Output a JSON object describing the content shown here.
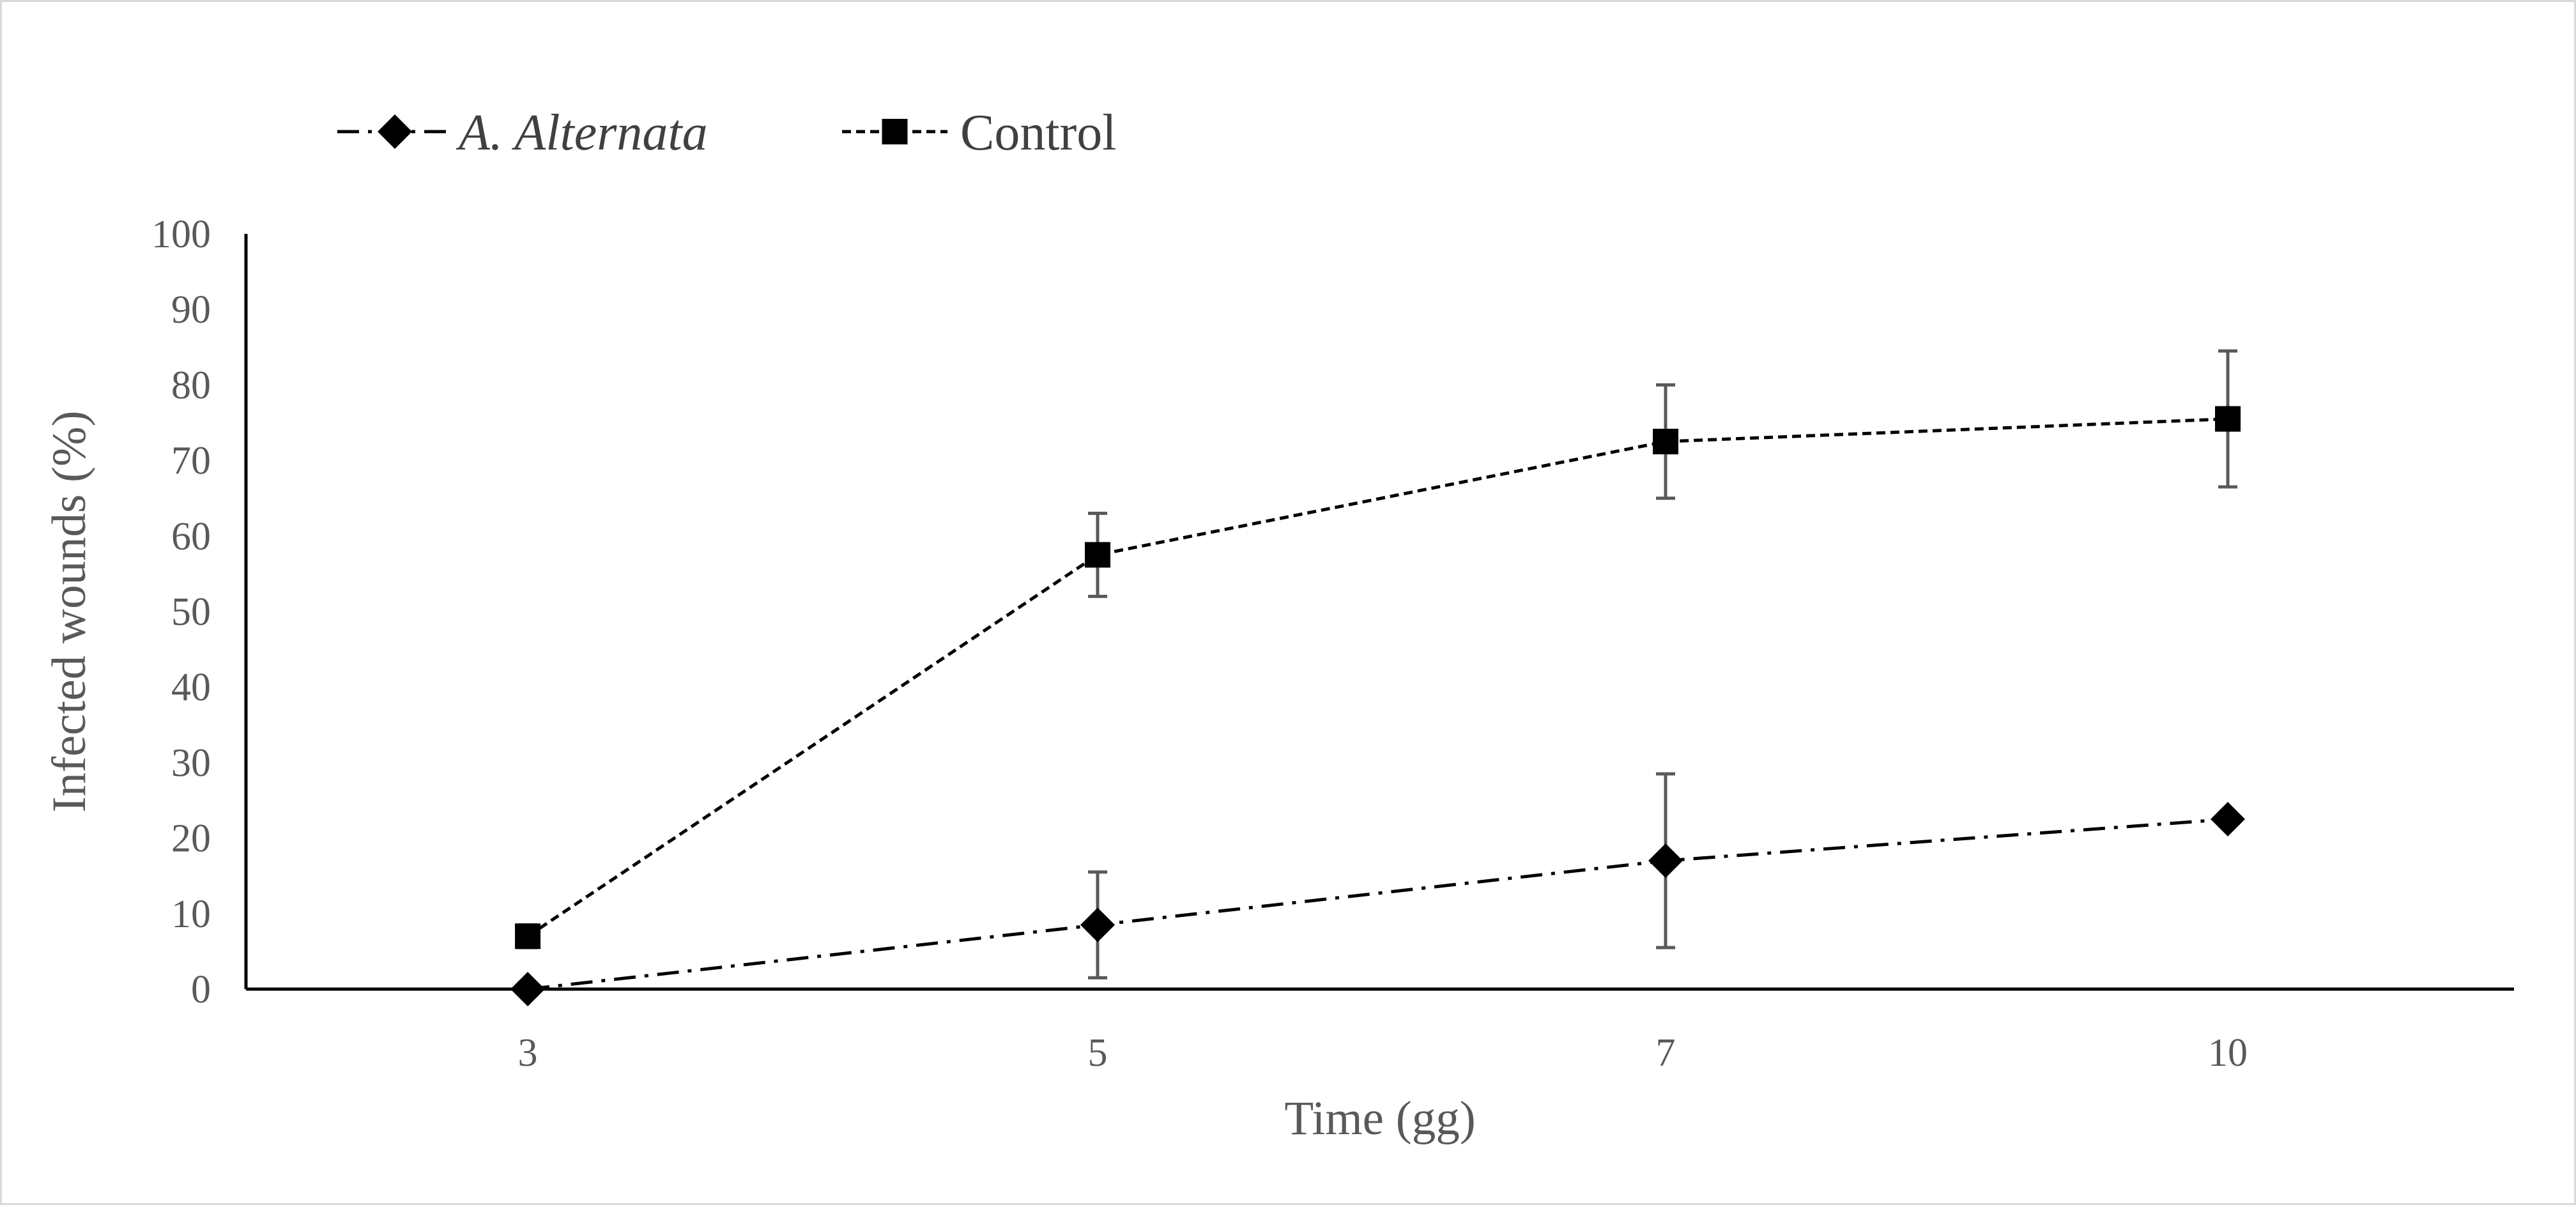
{
  "chart_data": {
    "type": "line",
    "title": "",
    "xlabel": "Time (gg)",
    "ylabel": "Infected wounds (%)",
    "categories": [
      "3",
      "5",
      "7",
      "10"
    ],
    "ylim": [
      0,
      100
    ],
    "yticks": [
      0,
      10,
      20,
      30,
      40,
      50,
      60,
      70,
      80,
      90,
      100
    ],
    "legend_position": "top-left",
    "series": [
      {
        "name": "A. Alternata",
        "marker": "diamond",
        "line_style": "dash-dot",
        "color": "#000000",
        "values": [
          0,
          8.5,
          17,
          22.5
        ],
        "error": [
          0,
          7,
          11.5,
          0
        ]
      },
      {
        "name": "Control",
        "marker": "square",
        "line_style": "dashed",
        "color": "#000000",
        "values": [
          7,
          57.5,
          72.5,
          75.5
        ],
        "error": [
          1.5,
          5.5,
          7.5,
          9
        ]
      }
    ]
  }
}
